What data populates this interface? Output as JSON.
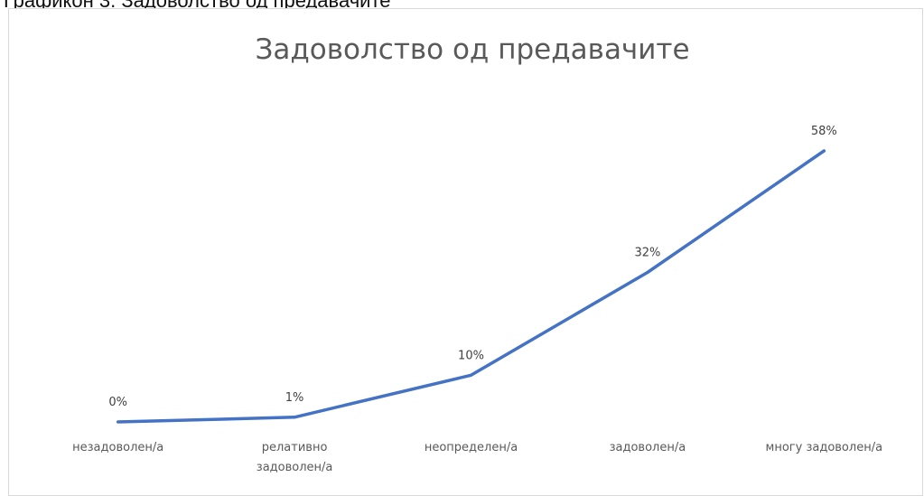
{
  "caption": "Графикон 3. Задоволство од предавачите",
  "chart_data": {
    "type": "line",
    "title": "Задоволство од предавачите",
    "categories": [
      [
        "незадоволен/а"
      ],
      [
        "релативно",
        "задоволен/а"
      ],
      [
        "неопределен/а"
      ],
      [
        "задоволен/а"
      ],
      [
        "многу задоволен/а"
      ]
    ],
    "series": [
      {
        "values": [
          0,
          1,
          10,
          32,
          58
        ],
        "labels": [
          "0%",
          "1%",
          "10%",
          "32%",
          "58%"
        ],
        "color": "#4472c4"
      }
    ],
    "ylim": [
      0,
      60
    ],
    "grid": false,
    "legend": "none"
  }
}
